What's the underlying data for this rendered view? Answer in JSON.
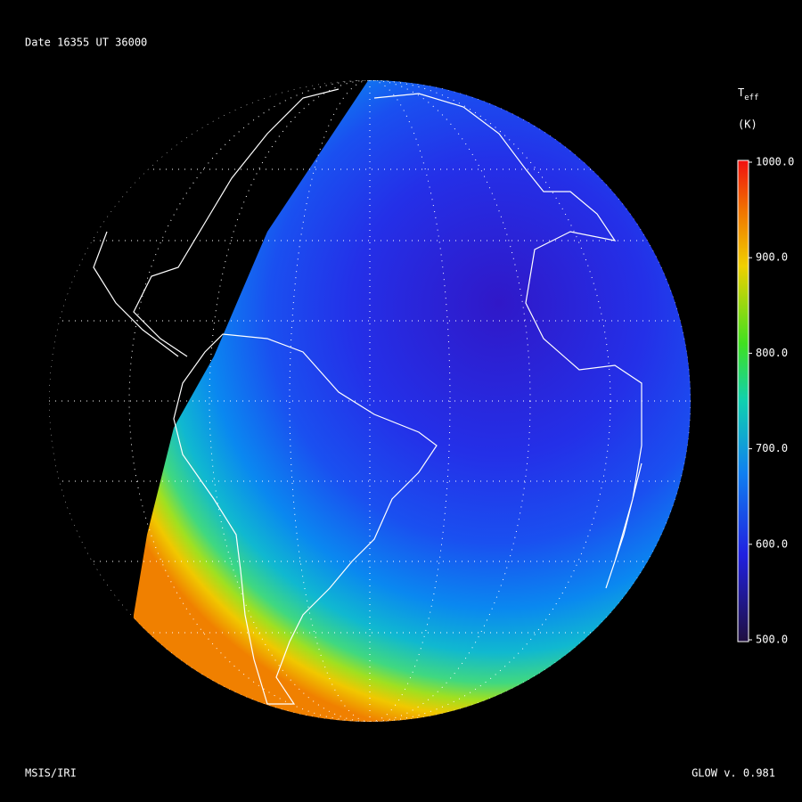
{
  "header": {
    "title": "Date 16355  UT 36000"
  },
  "colorbar": {
    "title": "T",
    "subscript": "eff",
    "unit": "(K)",
    "lim": [
      500,
      1000
    ],
    "ticks": [
      {
        "value": 1000,
        "label": "1000.0"
      },
      {
        "value": 900,
        "label": "900.0"
      },
      {
        "value": 800,
        "label": "800.0"
      },
      {
        "value": 700,
        "label": "700.0"
      },
      {
        "value": 600,
        "label": "600.0"
      },
      {
        "value": 500,
        "label": "500.0"
      }
    ]
  },
  "footer": {
    "left": "MSIS/IRI",
    "right": "GLOW v. 0.981"
  }
}
